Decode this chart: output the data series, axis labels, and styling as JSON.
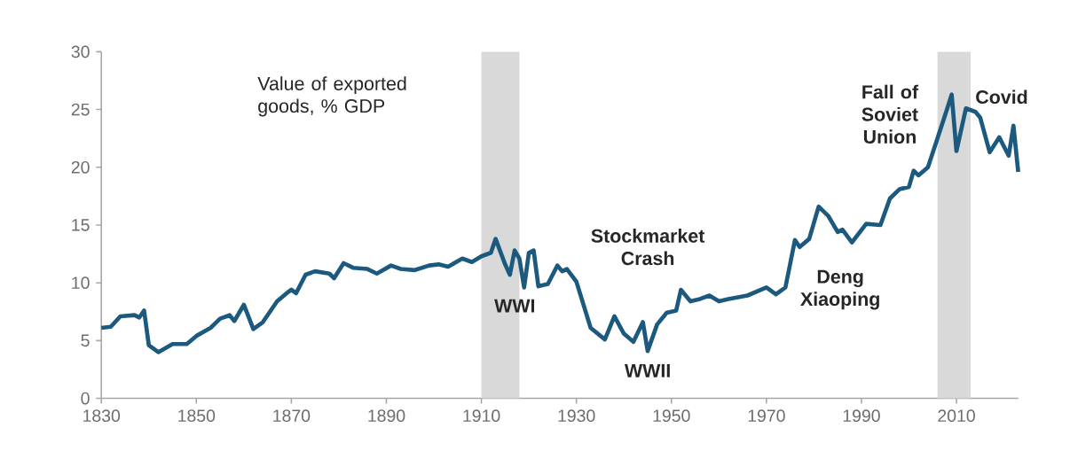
{
  "chart_data": {
    "type": "line",
    "color": "#1b5a7e",
    "x": [
      1830,
      1832,
      1834,
      1837,
      1838,
      1839,
      1840,
      1842,
      1845,
      1848,
      1850,
      1853,
      1855,
      1857,
      1858,
      1860,
      1862,
      1864,
      1867,
      1869,
      1870,
      1871,
      1873,
      1875,
      1878,
      1879,
      1881,
      1883,
      1886,
      1888,
      1891,
      1893,
      1896,
      1899,
      1901,
      1903,
      1906,
      1908,
      1910,
      1912,
      1913,
      1915,
      1916,
      1917,
      1918,
      1919,
      1920,
      1921,
      1922,
      1924,
      1926,
      1927,
      1928,
      1930,
      1933,
      1936,
      1938,
      1940,
      1942,
      1944,
      1945,
      1947,
      1949,
      1951,
      1952,
      1954,
      1956,
      1958,
      1960,
      1962,
      1966,
      1970,
      1972,
      1974,
      1976,
      1977,
      1979,
      1981,
      1983,
      1985,
      1986,
      1988,
      1991,
      1994,
      1996,
      1998,
      2000,
      2001,
      2002,
      2004,
      2006,
      2008,
      2009,
      2010,
      2012,
      2014,
      2015,
      2017,
      2019,
      2021,
      2022,
      2023
    ],
    "values": [
      6.1,
      6.2,
      7.1,
      7.2,
      7.0,
      7.6,
      4.6,
      4.0,
      4.7,
      4.7,
      5.4,
      6.1,
      6.9,
      7.2,
      6.7,
      8.1,
      6.0,
      6.6,
      8.4,
      9.1,
      9.4,
      9.1,
      10.7,
      11.0,
      10.8,
      10.4,
      11.7,
      11.3,
      11.2,
      10.8,
      11.5,
      11.2,
      11.1,
      11.5,
      11.6,
      11.4,
      12.1,
      11.8,
      12.3,
      12.6,
      13.8,
      11.6,
      10.7,
      12.8,
      12.1,
      9.6,
      12.6,
      12.8,
      9.7,
      9.9,
      11.5,
      11.0,
      11.2,
      10.1,
      6.1,
      5.1,
      7.1,
      5.6,
      4.9,
      6.6,
      4.1,
      6.4,
      7.4,
      7.6,
      9.4,
      8.4,
      8.6,
      8.9,
      8.4,
      8.6,
      8.9,
      9.6,
      9.0,
      9.6,
      13.7,
      13.1,
      13.8,
      16.6,
      15.8,
      14.4,
      14.6,
      13.5,
      15.1,
      15.0,
      17.3,
      18.1,
      18.3,
      19.7,
      19.3,
      20.0,
      22.5,
      25.0,
      26.3,
      21.4,
      25.1,
      24.8,
      24.3,
      21.3,
      22.6,
      21.0,
      23.6,
      19.6
    ],
    "xlim": [
      1830,
      2023
    ],
    "ylim": [
      0,
      30
    ],
    "xticks": [
      1830,
      1850,
      1870,
      1890,
      1910,
      1930,
      1950,
      1970,
      1990,
      2010
    ],
    "yticks": [
      0,
      5,
      10,
      15,
      20,
      25,
      30
    ],
    "grid": false,
    "marker": "none",
    "line_style": "solid",
    "bands": [
      {
        "axis": "x",
        "from": 1910,
        "to": 1918,
        "color": "#d9d9d9"
      },
      {
        "axis": "x",
        "from": 2006,
        "to": 2013,
        "color": "#d9d9d9"
      }
    ],
    "annotations": [
      "Value of exported goods, % GDP",
      "WWI",
      "Stockmarket Crash",
      "WWII",
      "Deng Xiaoping",
      "Fall of Soviet Union",
      "Covid"
    ]
  }
}
